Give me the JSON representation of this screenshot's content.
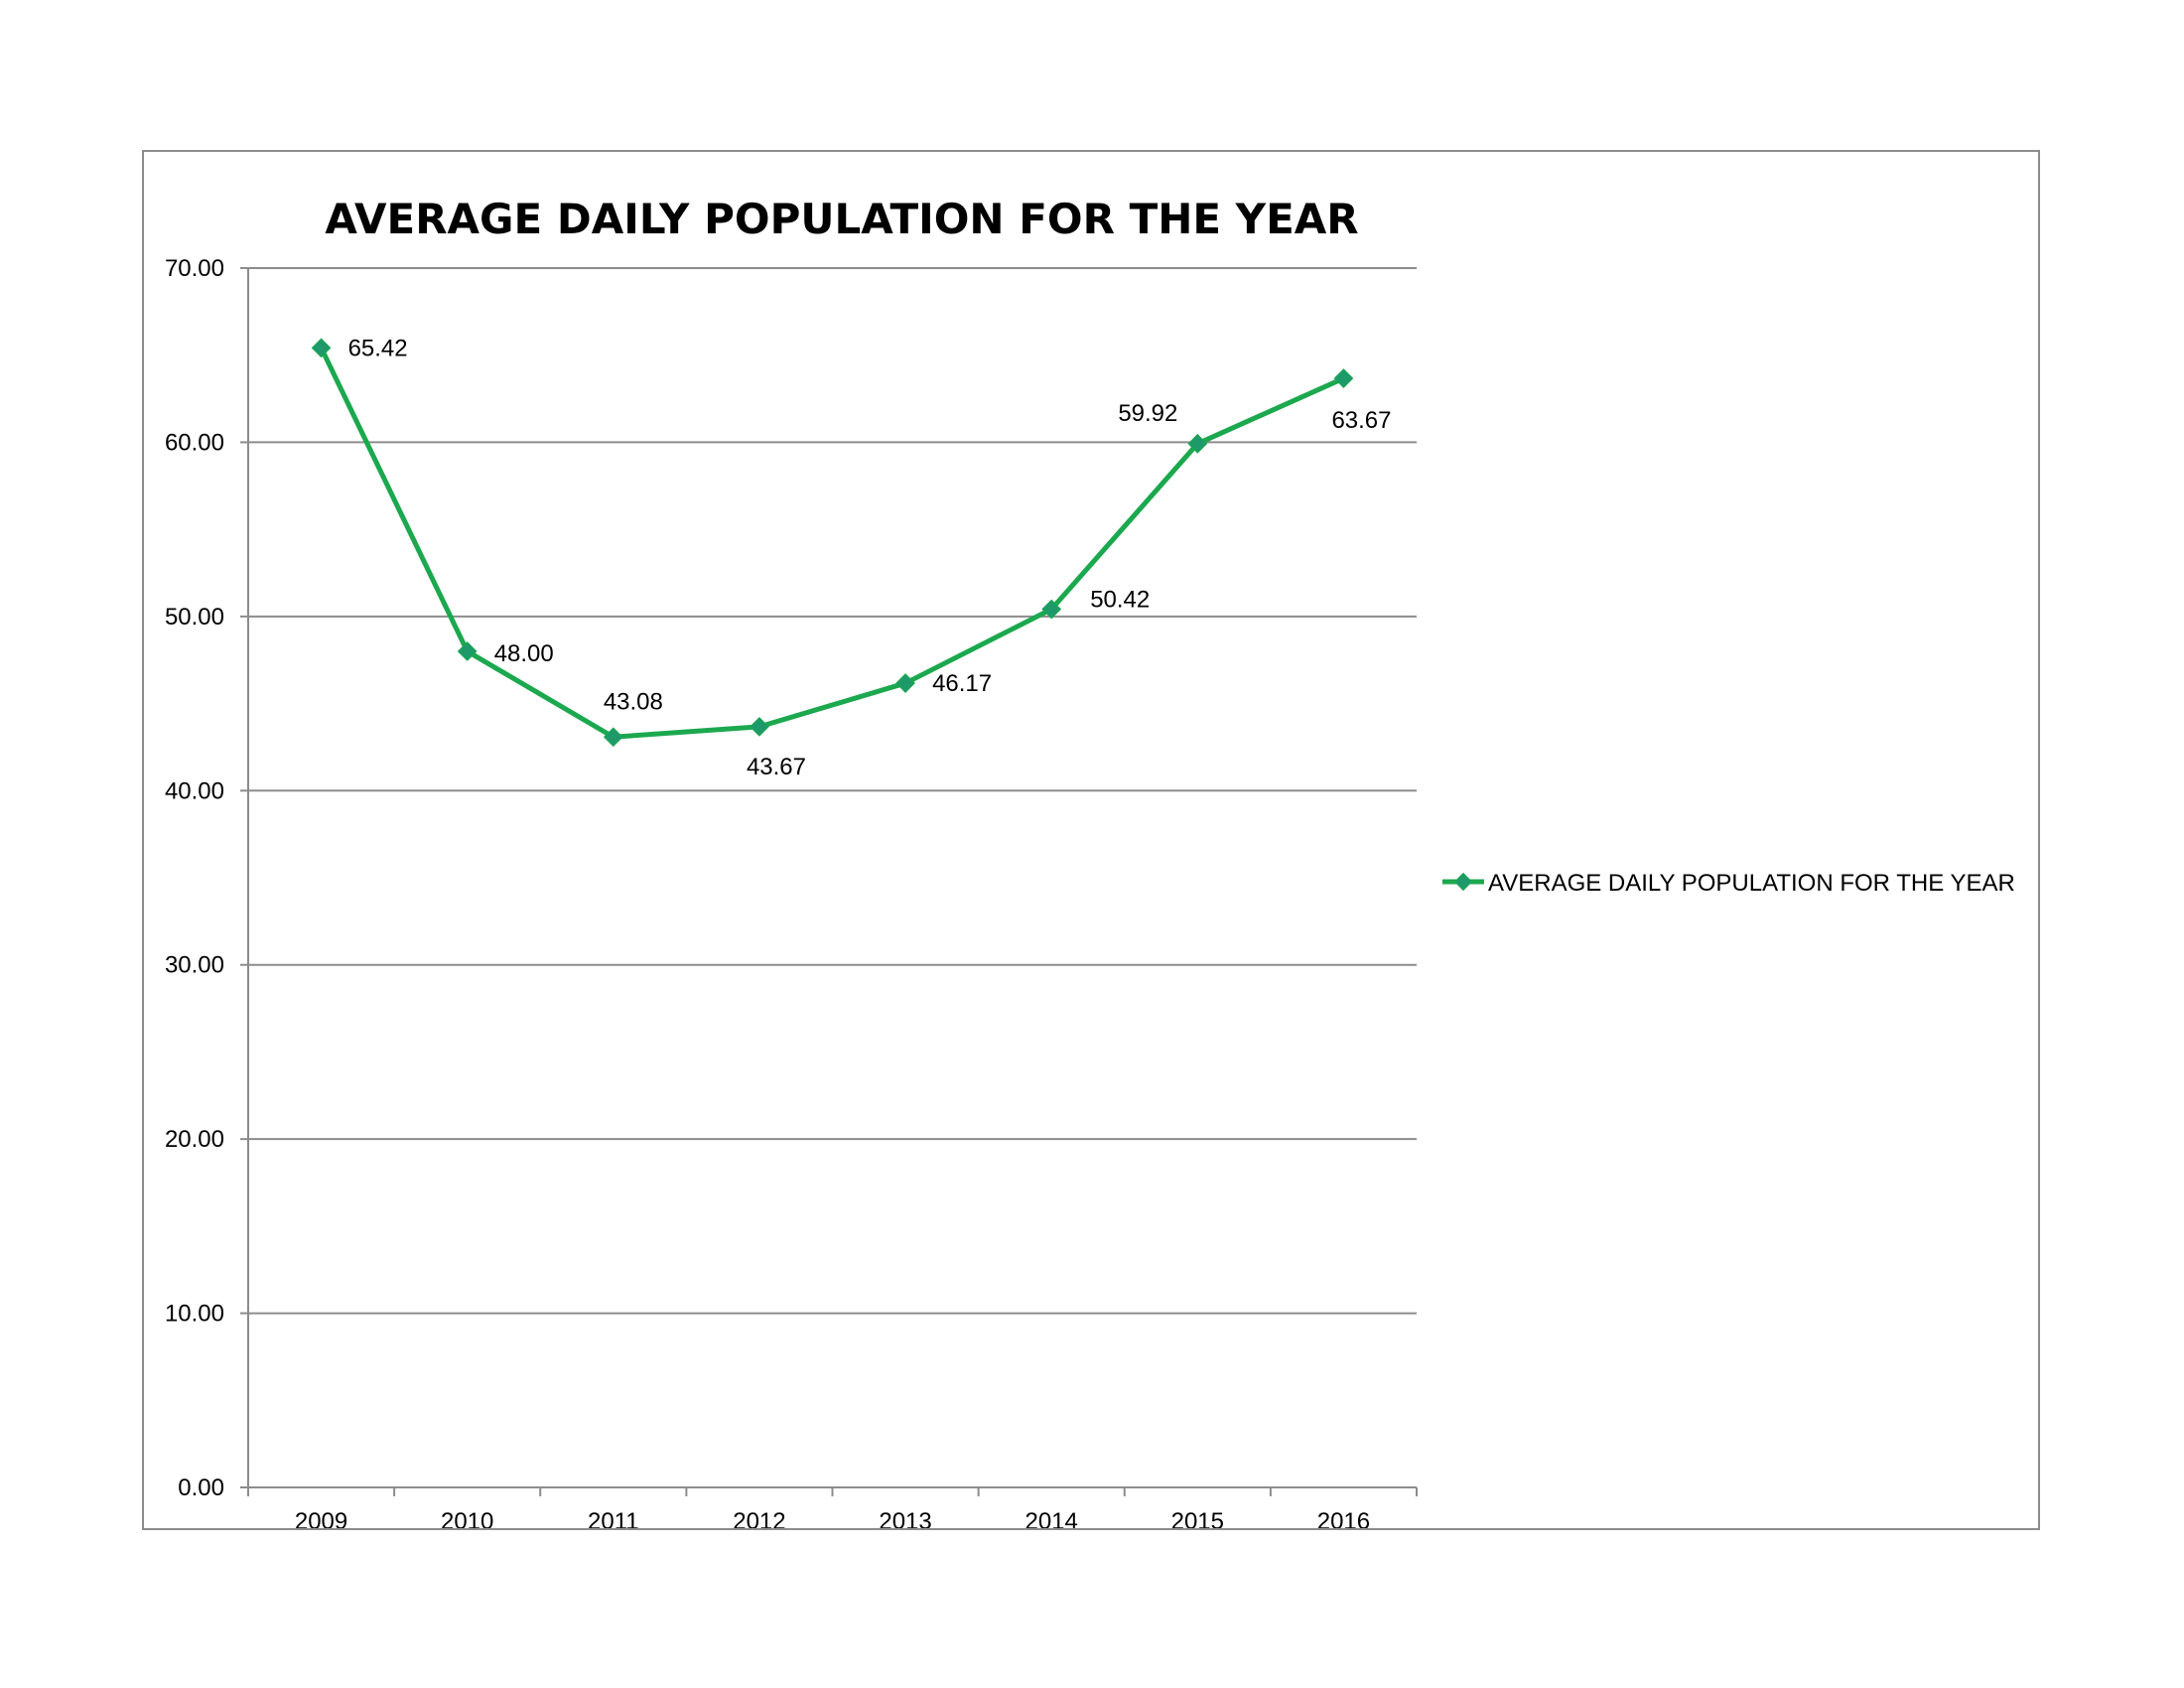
{
  "chart_data": {
    "type": "line",
    "title": "AVERAGE DAILY POPULATION FOR THE YEAR",
    "categories": [
      "2009",
      "2010",
      "2011",
      "2012",
      "2013",
      "2014",
      "2015",
      "2016"
    ],
    "series": [
      {
        "name": "AVERAGE DAILY POPULATION FOR THE YEAR",
        "values": [
          65.42,
          48.0,
          43.08,
          43.67,
          46.17,
          50.42,
          59.92,
          63.67
        ],
        "data_labels": [
          "65.42",
          "48.00",
          "43.08",
          "43.67",
          "46.17",
          "50.42",
          "59.92",
          "63.67"
        ],
        "color": "#1ba84e",
        "marker": "diamond",
        "marker_color": "#1e9a6a"
      }
    ],
    "y_ticks": [
      "0.00",
      "10.00",
      "20.00",
      "30.00",
      "40.00",
      "50.00",
      "60.00",
      "70.00"
    ],
    "ylim": [
      0,
      70
    ],
    "grid": true,
    "legend_position": "right",
    "gridline_color": "#8c8c8c"
  }
}
